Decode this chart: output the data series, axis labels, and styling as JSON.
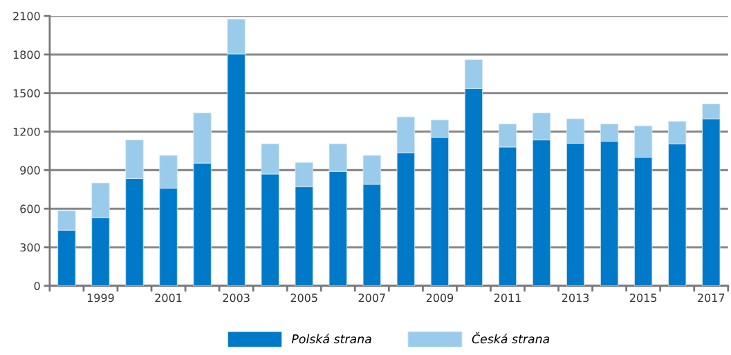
{
  "chart_data": {
    "type": "bar",
    "stacked": true,
    "categories": [
      null,
      "1999",
      null,
      "2001",
      null,
      "2003",
      null,
      "2005",
      null,
      "2007",
      null,
      "2009",
      null,
      "2011",
      null,
      "2013",
      null,
      "2015",
      null,
      "2017"
    ],
    "series": [
      {
        "name": "Polská strana",
        "color": "#0079c8",
        "values": [
          433,
          530,
          835,
          760,
          955,
          1805,
          870,
          770,
          890,
          790,
          1035,
          1155,
          1535,
          1080,
          1135,
          1110,
          1125,
          1000,
          1105,
          1300
        ]
      },
      {
        "name": "Česká strana",
        "color": "#9bcbea",
        "values": [
          152,
          270,
          300,
          255,
          390,
          270,
          235,
          190,
          215,
          225,
          280,
          135,
          225,
          180,
          210,
          190,
          135,
          245,
          175,
          115
        ]
      }
    ],
    "ylim": [
      0,
      2100
    ],
    "yticks": [
      0,
      300,
      600,
      900,
      1200,
      1500,
      1800,
      2100
    ],
    "grid": "y",
    "legend": "bottom"
  }
}
